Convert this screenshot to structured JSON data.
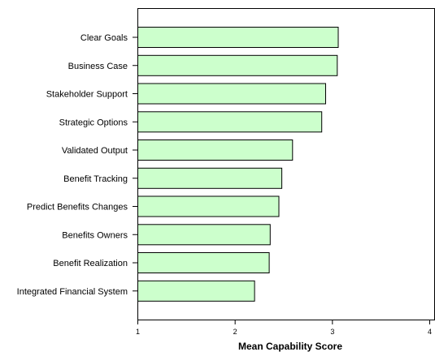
{
  "chart_data": {
    "type": "bar",
    "orientation": "horizontal",
    "categories": [
      "Clear Goals",
      "Business Case",
      "Stakeholder Support",
      "Strategic Options",
      "Validated Output",
      "Benefit Tracking",
      "Predict Benefits Changes",
      "Benefits Owners",
      "Benefit Realization",
      "Integrated Financial System"
    ],
    "values": [
      3.06,
      3.05,
      2.93,
      2.89,
      2.59,
      2.48,
      2.45,
      2.36,
      2.35,
      2.2
    ],
    "xlabel": "Mean Capability Score",
    "ylabel": "",
    "title": "",
    "xlim": [
      1,
      4
    ],
    "xticks": [
      "1",
      "2",
      "3",
      "4"
    ],
    "grid": false,
    "colors": {
      "bar_fill": "#ccffcc",
      "bar_stroke": "#000000"
    }
  }
}
